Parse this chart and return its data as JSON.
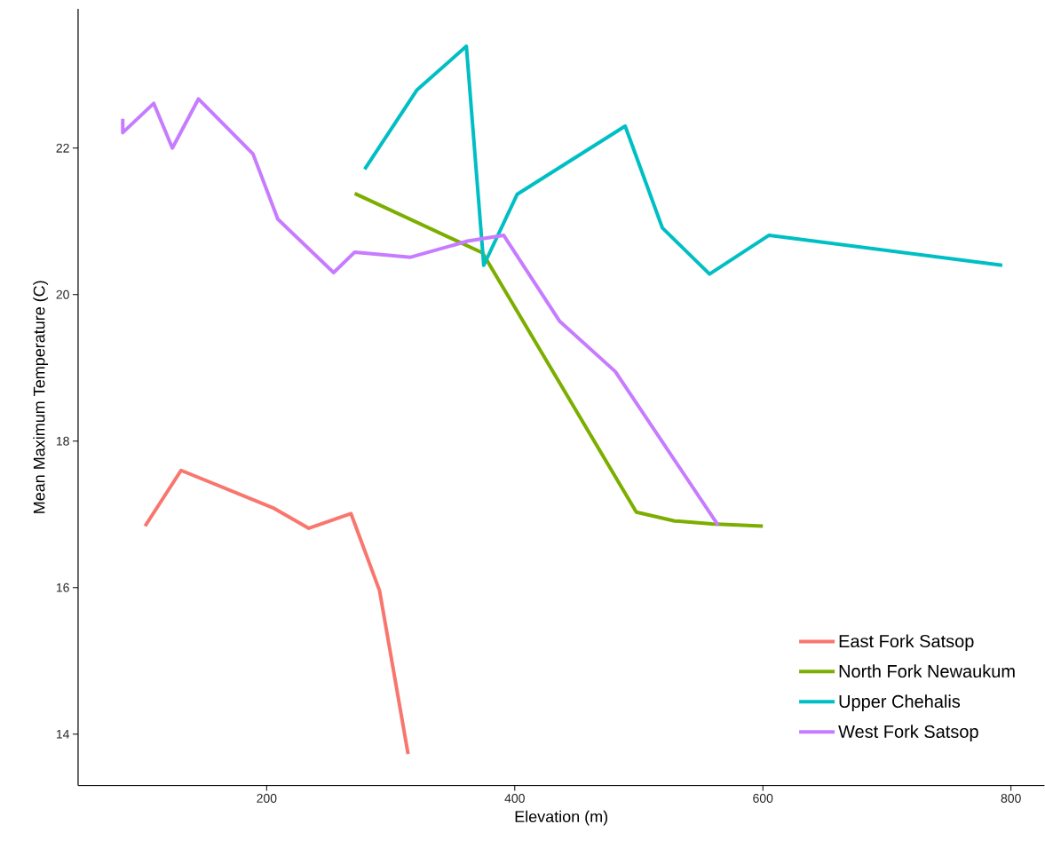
{
  "chart_data": {
    "type": "line",
    "xlabel": "Elevation (m)",
    "ylabel": "Mean Maximum Temperature (C)",
    "xlim": [
      48,
      827
    ],
    "ylim": [
      13.3,
      23.9
    ],
    "xticks": [
      200,
      400,
      600,
      800
    ],
    "yticks": [
      14,
      16,
      18,
      20,
      22
    ],
    "grid": false,
    "legend": "bottom right",
    "marker": "none",
    "line_style": "solid",
    "series": [
      {
        "name": "East Fork Satsop",
        "color": "#f8766d",
        "x": [
          102,
          131,
          205,
          234,
          268,
          291,
          314
        ],
        "values": [
          16.84,
          17.6,
          17.09,
          16.81,
          17.01,
          15.96,
          13.73
        ]
      },
      {
        "name": "North Fork Newaukum",
        "color": "#7cae00",
        "x": [
          271,
          374,
          498,
          529,
          559,
          600
        ],
        "values": [
          21.38,
          20.57,
          17.03,
          16.91,
          16.87,
          16.84
        ]
      },
      {
        "name": "Upper Chehalis",
        "color": "#00bfc4",
        "x": [
          279,
          321,
          361,
          375,
          402,
          489,
          519,
          557,
          605,
          793
        ],
        "values": [
          21.71,
          22.79,
          23.39,
          20.4,
          21.37,
          22.3,
          20.91,
          20.28,
          20.81,
          20.4
        ]
      },
      {
        "name": "West Fork Satsop",
        "color": "#c77cff",
        "x": [
          84,
          84,
          109,
          124,
          145,
          189,
          209,
          254,
          271,
          316,
          362,
          391,
          436,
          481,
          564
        ],
        "values": [
          22.4,
          22.21,
          22.61,
          22.0,
          22.67,
          21.92,
          21.03,
          20.3,
          20.58,
          20.51,
          20.73,
          20.81,
          19.64,
          18.95,
          16.85
        ]
      }
    ]
  }
}
